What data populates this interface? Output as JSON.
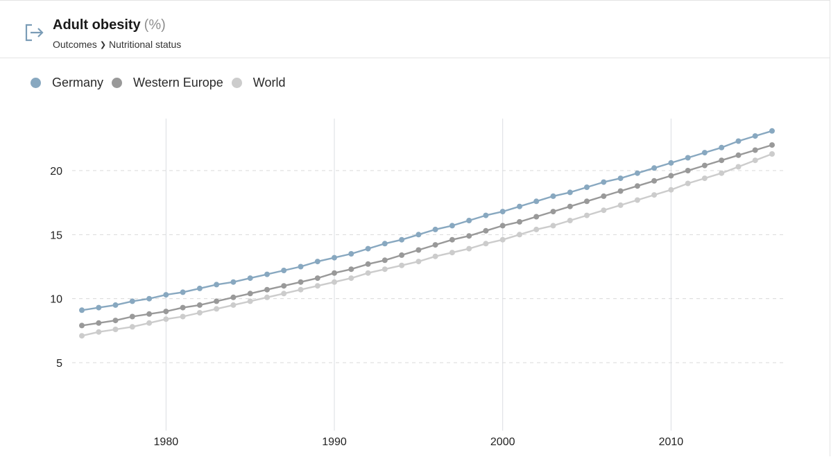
{
  "header": {
    "title": "Adult obesity",
    "unit": "(%)",
    "breadcrumb": [
      "Outcomes",
      "Nutritional status"
    ],
    "export_icon": "export-icon"
  },
  "legend": [
    {
      "label": "Germany",
      "color": "#88a8c0"
    },
    {
      "label": "Western Europe",
      "color": "#999999"
    },
    {
      "label": "World",
      "color": "#cccccc"
    }
  ],
  "chart_data": {
    "type": "line",
    "title": "Adult obesity (%)",
    "xlabel": "",
    "ylabel": "",
    "xlim": [
      1975,
      2016
    ],
    "ylim": [
      0,
      24
    ],
    "x_ticks": [
      1980,
      1990,
      2000,
      2010
    ],
    "y_ticks": [
      5,
      10,
      15,
      20
    ],
    "grid": {
      "x": "solid",
      "y": "dashed"
    },
    "legend_position": "top-left",
    "x": [
      1975,
      1976,
      1977,
      1978,
      1979,
      1980,
      1981,
      1982,
      1983,
      1984,
      1985,
      1986,
      1987,
      1988,
      1989,
      1990,
      1991,
      1992,
      1993,
      1994,
      1995,
      1996,
      1997,
      1998,
      1999,
      2000,
      2001,
      2002,
      2003,
      2004,
      2005,
      2006,
      2007,
      2008,
      2009,
      2010,
      2011,
      2012,
      2013,
      2014,
      2015,
      2016
    ],
    "series": [
      {
        "name": "Germany",
        "color": "#88a8c0",
        "values": [
          9.1,
          9.3,
          9.5,
          9.8,
          10.0,
          10.3,
          10.5,
          10.8,
          11.1,
          11.3,
          11.6,
          11.9,
          12.2,
          12.5,
          12.9,
          13.2,
          13.5,
          13.9,
          14.3,
          14.6,
          15.0,
          15.4,
          15.7,
          16.1,
          16.5,
          16.8,
          17.2,
          17.6,
          18.0,
          18.3,
          18.7,
          19.1,
          19.4,
          19.8,
          20.2,
          20.6,
          21.0,
          21.4,
          21.8,
          22.3,
          22.7,
          23.1
        ]
      },
      {
        "name": "Western Europe",
        "color": "#999999",
        "values": [
          7.9,
          8.1,
          8.3,
          8.6,
          8.8,
          9.0,
          9.3,
          9.5,
          9.8,
          10.1,
          10.4,
          10.7,
          11.0,
          11.3,
          11.6,
          12.0,
          12.3,
          12.7,
          13.0,
          13.4,
          13.8,
          14.2,
          14.6,
          14.9,
          15.3,
          15.7,
          16.0,
          16.4,
          16.8,
          17.2,
          17.6,
          18.0,
          18.4,
          18.8,
          19.2,
          19.6,
          20.0,
          20.4,
          20.8,
          21.2,
          21.6,
          22.0
        ]
      },
      {
        "name": "World",
        "color": "#cccccc",
        "values": [
          7.1,
          7.4,
          7.6,
          7.8,
          8.1,
          8.4,
          8.6,
          8.9,
          9.2,
          9.5,
          9.8,
          10.1,
          10.4,
          10.7,
          11.0,
          11.3,
          11.6,
          12.0,
          12.3,
          12.6,
          12.9,
          13.3,
          13.6,
          13.9,
          14.3,
          14.6,
          15.0,
          15.4,
          15.7,
          16.1,
          16.5,
          16.9,
          17.3,
          17.7,
          18.1,
          18.5,
          19.0,
          19.4,
          19.8,
          20.3,
          20.8,
          21.3
        ]
      }
    ]
  }
}
